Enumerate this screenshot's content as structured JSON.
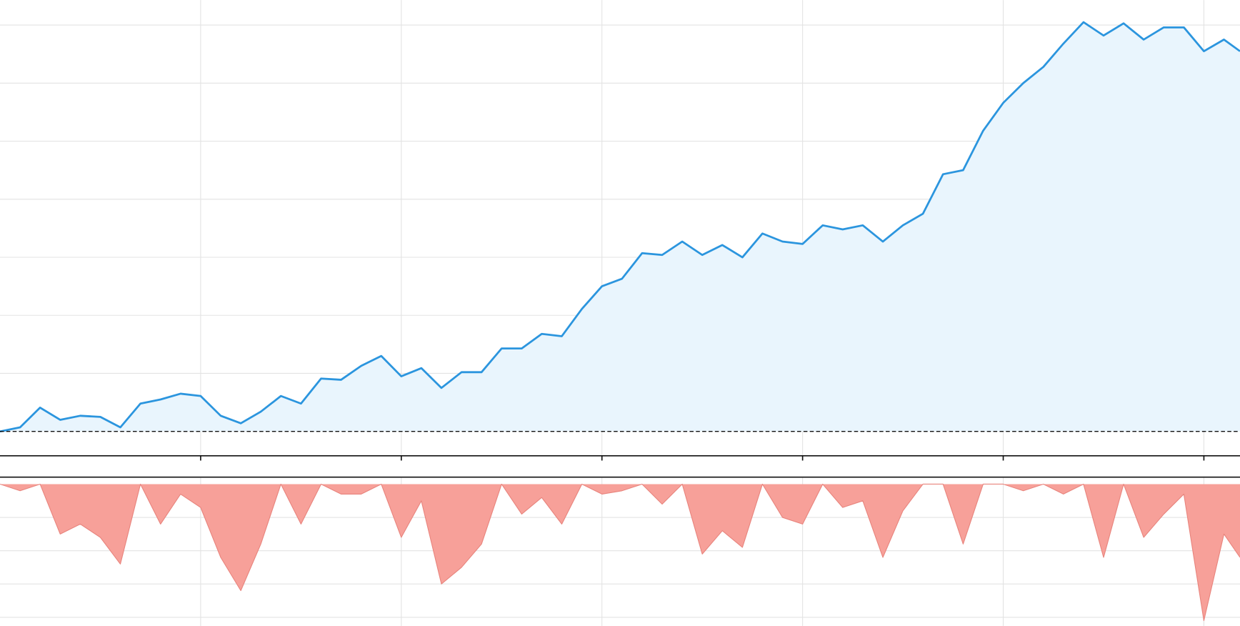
{
  "chart_data": [
    {
      "type": "area",
      "x": [
        0,
        0.1,
        0.2,
        0.3,
        0.4,
        0.5,
        0.6,
        0.7,
        0.8,
        0.9,
        1.0,
        1.1,
        1.2,
        1.3,
        1.4,
        1.5,
        1.6,
        1.7,
        1.8,
        1.9,
        2.0,
        2.1,
        2.2,
        2.3,
        2.4,
        2.5,
        2.6,
        2.7,
        2.8,
        2.9,
        3.0,
        3.1,
        3.2,
        3.3,
        3.4,
        3.5,
        3.6,
        3.7,
        3.8,
        3.9,
        4.0,
        4.1,
        4.2,
        4.3,
        4.4,
        4.5,
        4.6,
        4.7,
        4.8,
        4.9,
        5.0,
        5.1,
        5.2,
        5.3,
        5.4,
        5.5,
        5.6,
        5.7,
        5.8,
        5.9,
        6.0,
        6.1,
        6.18
      ],
      "values": [
        0,
        0.07,
        0.41,
        0.2,
        0.27,
        0.25,
        0.07,
        0.48,
        0.55,
        0.65,
        0.61,
        0.27,
        0.14,
        0.34,
        0.61,
        0.48,
        0.91,
        0.89,
        1.13,
        1.3,
        0.95,
        1.09,
        0.75,
        1.02,
        1.02,
        1.43,
        1.43,
        1.68,
        1.64,
        2.11,
        2.5,
        2.63,
        3.07,
        3.04,
        3.27,
        3.04,
        3.21,
        3.0,
        3.41,
        3.27,
        3.23,
        3.55,
        3.48,
        3.55,
        3.27,
        3.55,
        3.75,
        4.43,
        4.5,
        5.18,
        5.66,
        6.0,
        6.28,
        6.68,
        7.05,
        6.82,
        7.03,
        6.75,
        6.96,
        6.96,
        6.55,
        6.75,
        6.55
      ],
      "color": "#2b95de",
      "fill": "#e9f5fd",
      "xlim": [
        0,
        6.18
      ],
      "xticks": [
        1,
        2,
        3,
        4,
        5,
        6
      ],
      "ylim": [
        -0.42,
        7.43
      ],
      "yticks": [
        1,
        2,
        3,
        4,
        5,
        6,
        7
      ],
      "baseline": 0,
      "grid": true
    },
    {
      "type": "area",
      "x": [
        0,
        0.1,
        0.2,
        0.3,
        0.4,
        0.5,
        0.6,
        0.7,
        0.8,
        0.9,
        1.0,
        1.1,
        1.2,
        1.3,
        1.4,
        1.5,
        1.6,
        1.7,
        1.8,
        1.9,
        2.0,
        2.1,
        2.2,
        2.3,
        2.4,
        2.5,
        2.6,
        2.7,
        2.8,
        2.9,
        3.0,
        3.1,
        3.2,
        3.3,
        3.4,
        3.5,
        3.6,
        3.7,
        3.8,
        3.9,
        4.0,
        4.1,
        4.2,
        4.3,
        4.4,
        4.5,
        4.6,
        4.7,
        4.8,
        4.9,
        5.0,
        5.1,
        5.2,
        5.3,
        5.4,
        5.5,
        5.6,
        5.7,
        5.8,
        5.9,
        6.0,
        6.1,
        6.18
      ],
      "values": [
        0,
        -0.2,
        0,
        -1.5,
        -1.2,
        -1.6,
        -2.4,
        0,
        -1.2,
        -0.3,
        -0.7,
        -2.2,
        -3.2,
        -1.8,
        0,
        -1.2,
        0,
        -0.3,
        -0.3,
        0,
        -1.6,
        -0.5,
        -3.0,
        -2.5,
        -1.8,
        0,
        -0.9,
        -0.4,
        -1.2,
        0,
        -0.3,
        -0.2,
        0,
        -0.6,
        0,
        -2.1,
        -1.4,
        -1.9,
        0,
        -1.0,
        -1.2,
        0,
        -0.7,
        -0.5,
        -2.2,
        -0.8,
        0,
        0,
        -1.8,
        0,
        0,
        -0.2,
        0,
        -0.3,
        0,
        -2.2,
        0,
        -1.6,
        -0.9,
        -0.3,
        -4.1,
        -1.5,
        -2.2
      ],
      "color": "#e8847d",
      "fill": "#f7a099",
      "xlim": [
        0,
        6.18
      ],
      "xticks": [
        1,
        2,
        3,
        4,
        5,
        6
      ],
      "ylim": [
        -4.26,
        0.21
      ],
      "yticks": [
        -1,
        -2,
        -3,
        -4
      ],
      "grid": true
    }
  ]
}
